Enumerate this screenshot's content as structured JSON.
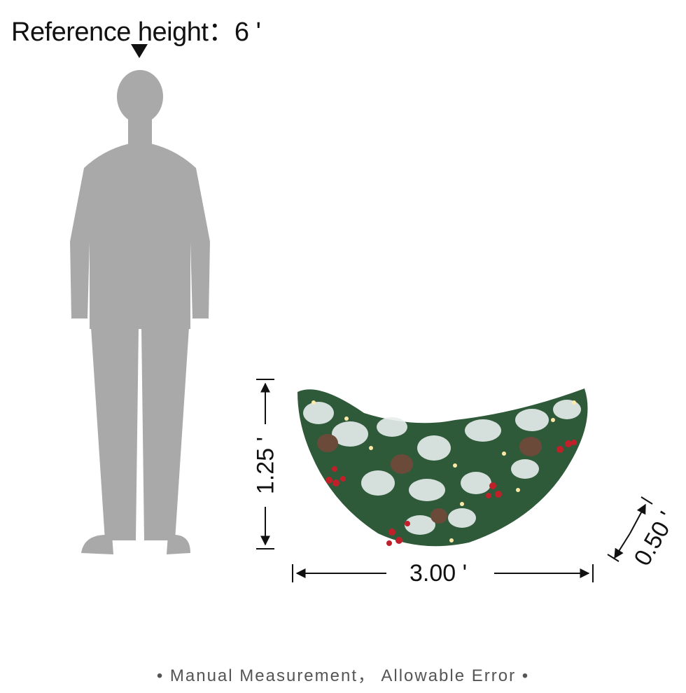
{
  "reference": {
    "label": "Reference height：",
    "value": "6 '"
  },
  "dimensions": {
    "height": "1.25 '",
    "width": "3.00 '",
    "depth": "0.50 '"
  },
  "footer": {
    "note": "• Manual Measurement， Allowable Error •"
  },
  "colors": {
    "silhouette": "#a9a9a9",
    "text": "#111111",
    "footer_text": "#555555",
    "greenery": "#2f5a3a",
    "frost": "#e8eeee",
    "berry": "#c0202a",
    "pinecone": "#6b4a3a",
    "light": "#ffe9a8"
  },
  "icons": {
    "marker": "triangle-down-icon",
    "person": "person-silhouette",
    "product": "swag-garland"
  }
}
